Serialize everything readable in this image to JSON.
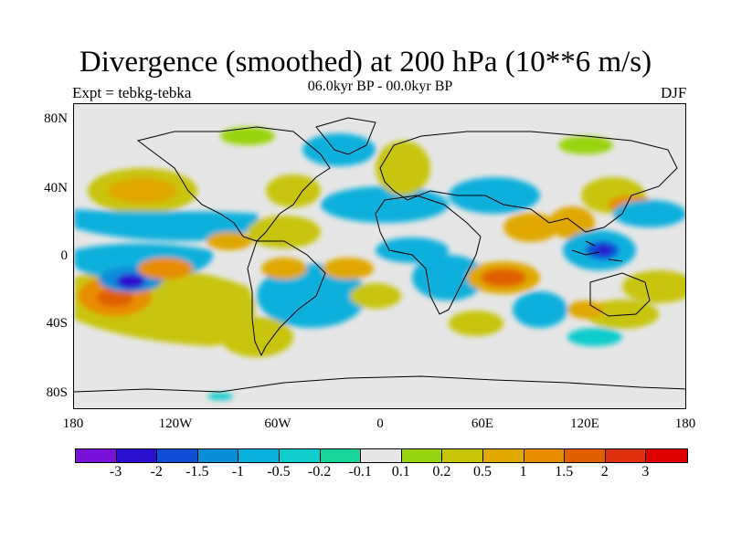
{
  "title": "Divergence (smoothed) at 200 hPa (10**6 m/s)",
  "experiment": "Expt = tebkg-tebka",
  "period": "06.0kyr BP - 00.0kyr BP",
  "season": "DJF",
  "lat_labels": [
    "80N",
    "40N",
    "0",
    "40S",
    "80S"
  ],
  "lon_labels": [
    "180",
    "120W",
    "60W",
    "0",
    "60E",
    "120E",
    "180"
  ],
  "colorbar": {
    "labels": [
      "-3",
      "-2",
      "-1.5",
      "-1",
      "-0.5",
      "-0.2",
      "-0.1",
      "0.1",
      "0.2",
      "0.5",
      "1",
      "1.5",
      "2",
      "3"
    ],
    "colors": [
      "#7a11d8",
      "#2a10d0",
      "#0f4fd6",
      "#0a8ed8",
      "#0ab0dd",
      "#10cccc",
      "#18d49a",
      "#e6e6e6",
      "#99d410",
      "#c8c408",
      "#e0a800",
      "#e88c00",
      "#e06000",
      "#e03010",
      "#e00000"
    ]
  },
  "colors": {
    "land_outline": "#000000",
    "background": "#e6e6e6"
  }
}
